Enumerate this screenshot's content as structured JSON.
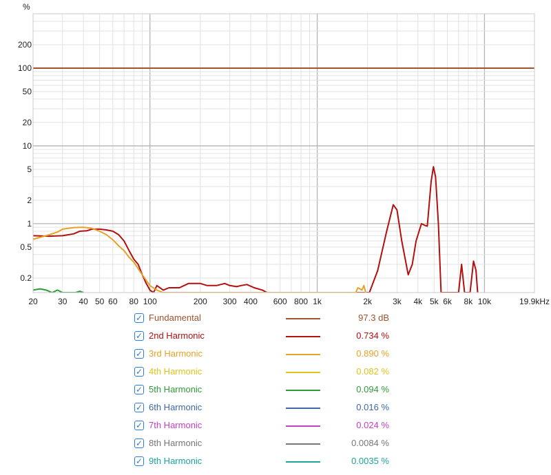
{
  "chart_data": {
    "type": "line",
    "y_unit": "%",
    "x_scale": "log",
    "y_scale": "log",
    "x_range": [
      20,
      19900
    ],
    "y_range": [
      0.13,
      500
    ],
    "x_tick_labels": [
      {
        "v": 20,
        "t": "20"
      },
      {
        "v": 30,
        "t": "30"
      },
      {
        "v": 40,
        "t": "40"
      },
      {
        "v": 50,
        "t": "50"
      },
      {
        "v": 60,
        "t": "60"
      },
      {
        "v": 80,
        "t": "80"
      },
      {
        "v": 100,
        "t": "100"
      },
      {
        "v": 200,
        "t": "200"
      },
      {
        "v": 300,
        "t": "300"
      },
      {
        "v": 400,
        "t": "400"
      },
      {
        "v": 600,
        "t": "600"
      },
      {
        "v": 800,
        "t": "800"
      },
      {
        "v": 1000,
        "t": "1k"
      },
      {
        "v": 2000,
        "t": "2k"
      },
      {
        "v": 3000,
        "t": "3k"
      },
      {
        "v": 4000,
        "t": "4k"
      },
      {
        "v": 5000,
        "t": "5k"
      },
      {
        "v": 6000,
        "t": "6k"
      },
      {
        "v": 8000,
        "t": "8k"
      },
      {
        "v": 10000,
        "t": "10k"
      },
      {
        "v": 19900,
        "t": "19.9kHz"
      }
    ],
    "y_tick_labels": [
      {
        "v": 200,
        "t": "200"
      },
      {
        "v": 100,
        "t": "100"
      },
      {
        "v": 50,
        "t": "50"
      },
      {
        "v": 20,
        "t": "20"
      },
      {
        "v": 10,
        "t": "10"
      },
      {
        "v": 5,
        "t": "5"
      },
      {
        "v": 2,
        "t": "2"
      },
      {
        "v": 1,
        "t": "1"
      },
      {
        "v": 0.5,
        "t": "0.5"
      },
      {
        "v": 0.2,
        "t": "0.2"
      }
    ],
    "grid": true,
    "legend_position": "bottom",
    "series": [
      {
        "name": "Fundamental",
        "color": "#a0522d",
        "value": "97.3 dB",
        "points": [
          [
            20,
            100
          ],
          [
            19900,
            100
          ]
        ]
      },
      {
        "name": "2nd Harmonic",
        "color": "#b30f0f",
        "value": "0.734 %",
        "points": [
          [
            20,
            0.7
          ],
          [
            25,
            0.69
          ],
          [
            30,
            0.7
          ],
          [
            35,
            0.74
          ],
          [
            38,
            0.8
          ],
          [
            42,
            0.81
          ],
          [
            45,
            0.85
          ],
          [
            50,
            0.85
          ],
          [
            55,
            0.83
          ],
          [
            60,
            0.8
          ],
          [
            65,
            0.72
          ],
          [
            70,
            0.6
          ],
          [
            75,
            0.45
          ],
          [
            80,
            0.35
          ],
          [
            85,
            0.3
          ],
          [
            90,
            0.22
          ],
          [
            95,
            0.17
          ],
          [
            100,
            0.14
          ],
          [
            105,
            0.13
          ],
          [
            110,
            0.16
          ],
          [
            120,
            0.14
          ],
          [
            130,
            0.15
          ],
          [
            150,
            0.15
          ],
          [
            170,
            0.17
          ],
          [
            200,
            0.17
          ],
          [
            220,
            0.16
          ],
          [
            250,
            0.16
          ],
          [
            280,
            0.17
          ],
          [
            300,
            0.16
          ],
          [
            330,
            0.155
          ],
          [
            350,
            0.16
          ],
          [
            380,
            0.165
          ],
          [
            420,
            0.15
          ],
          [
            470,
            0.14
          ],
          [
            500,
            0.13
          ],
          [
            2050,
            0.13
          ],
          [
            2300,
            0.25
          ],
          [
            2600,
            0.8
          ],
          [
            2850,
            1.75
          ],
          [
            3000,
            1.5
          ],
          [
            3200,
            0.6
          ],
          [
            3500,
            0.22
          ],
          [
            3700,
            0.3
          ],
          [
            3900,
            0.6
          ],
          [
            4200,
            1.0
          ],
          [
            4400,
            0.95
          ],
          [
            4550,
            0.93
          ],
          [
            4800,
            3.5
          ],
          [
            4950,
            5.4
          ],
          [
            5100,
            4.0
          ],
          [
            5300,
            1.0
          ],
          [
            5500,
            0.13
          ],
          [
            7000,
            0.13
          ],
          [
            7300,
            0.3
          ],
          [
            7600,
            0.13
          ],
          [
            8200,
            0.13
          ],
          [
            8600,
            0.33
          ],
          [
            8900,
            0.25
          ],
          [
            9100,
            0.13
          ]
        ]
      },
      {
        "name": "3rd Harmonic",
        "color": "#e8a127",
        "value": "0.890 %",
        "points": [
          [
            20,
            0.63
          ],
          [
            25,
            0.72
          ],
          [
            28,
            0.78
          ],
          [
            30,
            0.85
          ],
          [
            35,
            0.89
          ],
          [
            40,
            0.9
          ],
          [
            45,
            0.87
          ],
          [
            50,
            0.8
          ],
          [
            55,
            0.72
          ],
          [
            60,
            0.62
          ],
          [
            65,
            0.52
          ],
          [
            70,
            0.45
          ],
          [
            75,
            0.37
          ],
          [
            80,
            0.32
          ],
          [
            90,
            0.22
          ],
          [
            100,
            0.16
          ],
          [
            110,
            0.14
          ],
          [
            120,
            0.13
          ],
          [
            1700,
            0.13
          ],
          [
            1750,
            0.15
          ],
          [
            1850,
            0.14
          ],
          [
            1900,
            0.16
          ],
          [
            1950,
            0.13
          ]
        ]
      },
      {
        "name": "4th Harmonic",
        "color": "#dcc51a",
        "value": "0.082 %",
        "points": []
      },
      {
        "name": "5th Harmonic",
        "color": "#2f9a3a",
        "value": "0.094 %",
        "points": [
          [
            20,
            0.14
          ],
          [
            22,
            0.145
          ],
          [
            24,
            0.14
          ],
          [
            26,
            0.13
          ],
          [
            28,
            0.14
          ],
          [
            30,
            0.13
          ],
          [
            36,
            0.13
          ],
          [
            38,
            0.135
          ],
          [
            40,
            0.13
          ]
        ]
      },
      {
        "name": "6th Harmonic",
        "color": "#3d67a5",
        "value": "0.016 %",
        "points": []
      },
      {
        "name": "7th Harmonic",
        "color": "#c53ec3",
        "value": "0.024 %",
        "points": []
      },
      {
        "name": "8th Harmonic",
        "color": "#777777",
        "value": "0.0084 %",
        "points": []
      },
      {
        "name": "9th Harmonic",
        "color": "#1aa59b",
        "value": "0.0035 %",
        "points": []
      }
    ]
  }
}
